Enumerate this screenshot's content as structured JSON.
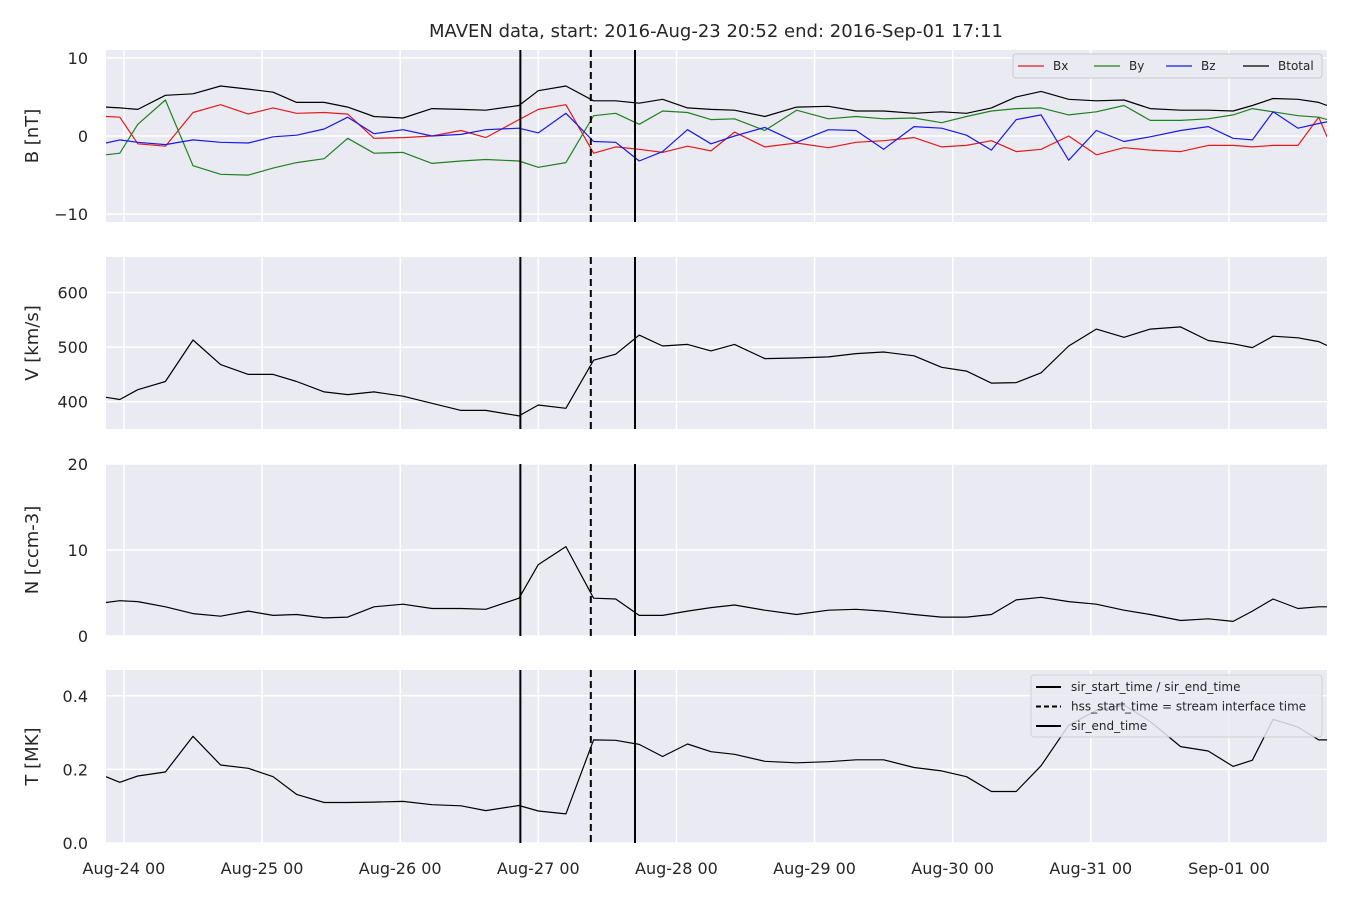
{
  "chart_data": {
    "type": "line",
    "title": "MAVEN data, start: 2016-Aug-23 20:52  end: 2016-Sep-01 17:11",
    "x_unit": "days",
    "x_origin": "2016-08-24 00:00",
    "xlim": [
      -0.13,
      8.71
    ],
    "x_ticks": [
      {
        "x": 0,
        "label": "Aug-24 00"
      },
      {
        "x": 1,
        "label": "Aug-25 00"
      },
      {
        "x": 2,
        "label": "Aug-26 00"
      },
      {
        "x": 3,
        "label": "Aug-27 00"
      },
      {
        "x": 4,
        "label": "Aug-28 00"
      },
      {
        "x": 5,
        "label": "Aug-29 00"
      },
      {
        "x": 6,
        "label": "Aug-30 00"
      },
      {
        "x": 7,
        "label": "Aug-31 00"
      },
      {
        "x": 8,
        "label": "Sep-01 00"
      }
    ],
    "x": [
      -0.13,
      -0.03,
      0.1,
      0.3,
      0.5,
      0.7,
      0.9,
      1.08,
      1.25,
      1.45,
      1.62,
      1.81,
      2.02,
      2.23,
      2.44,
      2.62,
      2.86,
      3.0,
      3.2,
      3.4,
      3.56,
      3.73,
      3.9,
      4.08,
      4.25,
      4.42,
      4.64,
      4.87,
      5.1,
      5.3,
      5.5,
      5.72,
      5.92,
      6.1,
      6.28,
      6.46,
      6.64,
      6.84,
      7.04,
      7.24,
      7.43,
      7.65,
      7.85,
      8.03,
      8.17,
      8.32,
      8.5,
      8.65,
      8.71
    ],
    "vlines": [
      {
        "x": 2.87,
        "style": "solid"
      },
      {
        "x": 3.38,
        "style": "dashed"
      },
      {
        "x": 3.7,
        "style": "solid"
      }
    ],
    "panels": [
      {
        "ylabel": "B [nT]",
        "ylim": [
          -11,
          11
        ],
        "yticks": [
          -10,
          0,
          10
        ],
        "series": [
          {
            "name": "Bx",
            "color": "#e41a1c",
            "values": [
              2.5,
              2.4,
              -1,
              -1.3,
              3,
              4,
              2.8,
              3.6,
              2.9,
              3,
              2.8,
              -0.3,
              -0.2,
              0,
              0.7,
              -0.2,
              2.1,
              3.4,
              4,
              -2.2,
              -1.4,
              -1.7,
              -2.1,
              -1.3,
              -1.9,
              0.5,
              -1.4,
              -0.9,
              -1.5,
              -0.8,
              -0.6,
              -0.2,
              -1.4,
              -1.2,
              -0.6,
              -2,
              -1.7,
              0,
              -2.4,
              -1.5,
              -1.8,
              -2,
              -1.2,
              -1.2,
              -1.4,
              -1.2,
              -1.2,
              2.4,
              -0.1
            ]
          },
          {
            "name": "By",
            "color": "#208020",
            "values": [
              -2.4,
              -2.2,
              1.5,
              4.6,
              -3.8,
              -4.9,
              -5,
              -4.1,
              -3.4,
              -2.9,
              -0.3,
              -2.2,
              -2.1,
              -3.5,
              -3.2,
              -3,
              -3.2,
              -4,
              -3.4,
              2.6,
              2.9,
              1.5,
              3.2,
              3,
              2.1,
              2.2,
              0.7,
              3.3,
              2.2,
              2.5,
              2.2,
              2.3,
              1.7,
              2.5,
              3.2,
              3.5,
              3.6,
              2.7,
              3.1,
              3.9,
              2,
              2,
              2.2,
              2.7,
              3.5,
              3.1,
              2.6,
              2.4,
              2.1
            ]
          },
          {
            "name": "Bz",
            "color": "#1a1ae6",
            "values": [
              -0.9,
              -0.5,
              -0.8,
              -1.1,
              -0.5,
              -0.8,
              -0.9,
              -0.1,
              0.1,
              0.9,
              2.4,
              0.3,
              0.8,
              0,
              0.2,
              0.8,
              1,
              0.4,
              2.9,
              -0.7,
              -0.8,
              -3.2,
              -2,
              0.8,
              -1,
              0,
              1.1,
              -0.8,
              0.8,
              0.7,
              -1.7,
              1.2,
              1,
              0.1,
              -1.8,
              2.1,
              2.7,
              -3.1,
              0.7,
              -0.7,
              -0.1,
              0.7,
              1.2,
              -0.3,
              -0.5,
              3.1,
              1,
              1.6,
              1.8
            ]
          },
          {
            "name": "Btotal",
            "color": "#000000",
            "values": [
              3.7,
              3.6,
              3.4,
              5.2,
              5.4,
              6.4,
              6,
              5.6,
              4.3,
              4.3,
              3.7,
              2.5,
              2.3,
              3.5,
              3.4,
              3.3,
              3.9,
              5.8,
              6.4,
              4.5,
              4.5,
              4.2,
              4.7,
              3.6,
              3.4,
              3.3,
              2.5,
              3.7,
              3.8,
              3.2,
              3.2,
              2.9,
              3.1,
              2.9,
              3.6,
              5,
              5.7,
              4.7,
              4.5,
              4.6,
              3.5,
              3.3,
              3.3,
              3.2,
              3.9,
              4.8,
              4.7,
              4.3,
              3.9
            ]
          }
        ]
      },
      {
        "ylabel": "V [km/s]",
        "ylim": [
          350,
          665
        ],
        "yticks": [
          400,
          500,
          600
        ],
        "series": [
          {
            "name": "V",
            "color": "#000000",
            "values": [
              408,
              404,
              422,
              437,
              513,
              468,
              450,
              450,
              437,
              418,
              413,
              418,
              410,
              397,
              384,
              384,
              374,
              394,
              388,
              476,
              487,
              522,
              502,
              505,
              493,
              505,
              479,
              480,
              482,
              488,
              491,
              484,
              463,
              456,
              434,
              435,
              453,
              502,
              533,
              518,
              533,
              537,
              512,
              506,
              499,
              520,
              517,
              510,
              503
            ]
          }
        ]
      },
      {
        "ylabel": "N [ccm-3]",
        "ylim": [
          0,
          20
        ],
        "yticks": [
          0,
          10,
          20
        ],
        "series": [
          {
            "name": "N",
            "color": "#000000",
            "values": [
              3.9,
              4.1,
              4,
              3.4,
              2.6,
              2.3,
              2.9,
              2.4,
              2.5,
              2.1,
              2.2,
              3.4,
              3.7,
              3.2,
              3.2,
              3.1,
              4.4,
              8.3,
              10.4,
              4.4,
              4.3,
              2.4,
              2.4,
              2.9,
              3.3,
              3.6,
              3,
              2.5,
              3,
              3.1,
              2.9,
              2.5,
              2.2,
              2.2,
              2.5,
              4.2,
              4.5,
              4,
              3.7,
              3,
              2.5,
              1.8,
              2,
              1.7,
              2.9,
              4.3,
              3.2,
              3.4,
              3.4
            ]
          }
        ]
      },
      {
        "ylabel": "T [MK]",
        "ylim": [
          0,
          0.47
        ],
        "yticks": [
          0.0,
          0.2,
          0.4
        ],
        "series": [
          {
            "name": "T",
            "color": "#000000",
            "values": [
              0.18,
              0.165,
              0.182,
              0.193,
              0.29,
              0.212,
              0.203,
              0.18,
              0.132,
              0.11,
              0.11,
              0.111,
              0.113,
              0.104,
              0.101,
              0.088,
              0.102,
              0.087,
              0.079,
              0.28,
              0.279,
              0.268,
              0.235,
              0.269,
              0.248,
              0.241,
              0.222,
              0.218,
              0.221,
              0.226,
              0.226,
              0.205,
              0.196,
              0.18,
              0.14,
              0.14,
              0.21,
              0.32,
              0.36,
              0.375,
              0.33,
              0.262,
              0.25,
              0.208,
              0.225,
              0.336,
              0.315,
              0.28,
              0.28
            ]
          }
        ]
      }
    ],
    "legend_B": {
      "placement": "top-right",
      "entries": [
        "Bx",
        "By",
        "Bz",
        "Btotal"
      ]
    },
    "legend_T": {
      "placement": "top-right",
      "entries": [
        {
          "label": "sir_start_time / sir_end_time",
          "style": "solid"
        },
        {
          "label": "hss_start_time = stream interface time",
          "style": "dashed"
        },
        {
          "label": "sir_end_time",
          "style": "solid"
        }
      ]
    },
    "colors": {
      "panel_bg": "#eaeaf2",
      "grid": "#ffffff",
      "text": "#262626"
    }
  }
}
